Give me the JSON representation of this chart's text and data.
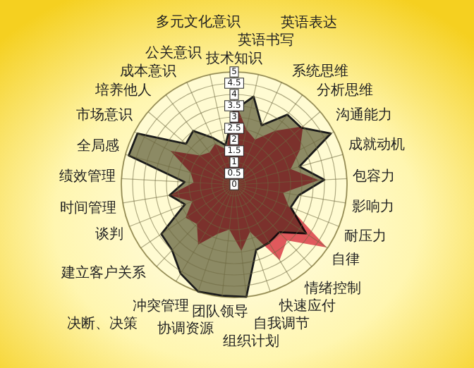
{
  "chart_data": {
    "type": "radar",
    "categories": [
      "技术知识",
      "英语书写",
      "英语表达",
      "系统思维",
      "分析思维",
      "沟通能力",
      "成就动机",
      "包容力",
      "影响力",
      "耐压力",
      "自律",
      "情绪控制",
      "快速应付",
      "自我调节",
      "组织计划",
      "团队领导",
      "协调资源",
      "冲突管理",
      "决断、决策",
      "建立客户关系",
      "谈判",
      "时间管理",
      "绩效管理",
      "全局感",
      "市场意识",
      "培养他人",
      "成本意识",
      "公关意识",
      "多元文化意识"
    ],
    "ylim": [
      0,
      5
    ],
    "yticks": [
      0,
      0.5,
      1,
      1.5,
      2,
      2.5,
      3,
      3.5,
      4,
      4.5,
      5
    ],
    "grid": true,
    "series": [
      {
        "color": "#8c8a64",
        "values": [
          3.3,
          4.0,
          2.9,
          3.9,
          3.9,
          4.85,
          3.0,
          4.0,
          2.9,
          2.7,
          3.85,
          2.9,
          3.0,
          3.05,
          5.0,
          4.95,
          5.0,
          4.6,
          4.0,
          3.9,
          2.35,
          2.9,
          2.2,
          4.85,
          4.85,
          2.8,
          3.0,
          2.3,
          1.8
        ]
      },
      {
        "color": "#e05a70",
        "values": [
          3.8,
          2.5,
          2.2,
          3.0,
          4.0,
          3.3,
          2.6,
          3.75,
          2.2,
          2.6,
          4.95,
          3.4,
          3.9,
          2.2,
          2.95,
          2.0,
          2.3,
          3.1,
          2.4,
          2.6,
          2.0,
          2.9,
          1.8,
          2.0,
          3.2,
          2.0,
          1.8,
          2.0,
          1.6
        ]
      }
    ]
  }
}
